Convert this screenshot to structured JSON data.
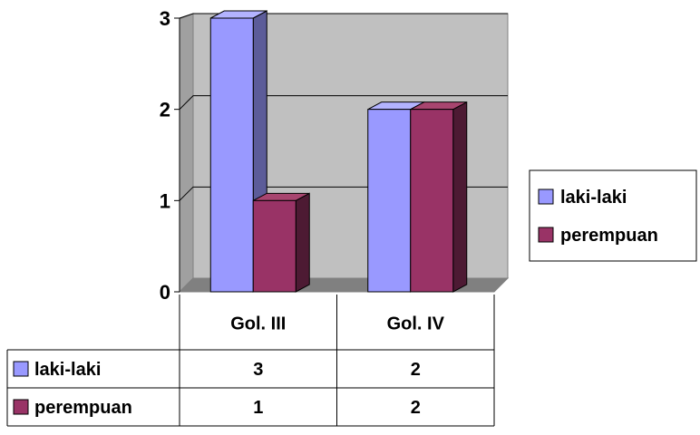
{
  "chart_data": {
    "type": "bar",
    "style": "3d-clustered-column-with-data-table",
    "categories": [
      "Gol. III",
      "Gol. IV"
    ],
    "series": [
      {
        "name": "laki-laki",
        "values": [
          3,
          2
        ]
      },
      {
        "name": "perempuan",
        "values": [
          1,
          2
        ]
      }
    ],
    "ylim": [
      0,
      3
    ],
    "yticks": [
      "0",
      "1",
      "2",
      "3"
    ],
    "grid": true,
    "legend_position": "right",
    "data_table": true,
    "colors": {
      "series": [
        "#9999ff",
        "#993366"
      ],
      "series_top": [
        "#b3b3ff",
        "#a8456f"
      ],
      "series_side": [
        "#5c5c99",
        "#4d1a33"
      ],
      "plot_wall": "#c0c0c0",
      "plot_floor": "#808080",
      "gridline": "#000000"
    }
  }
}
